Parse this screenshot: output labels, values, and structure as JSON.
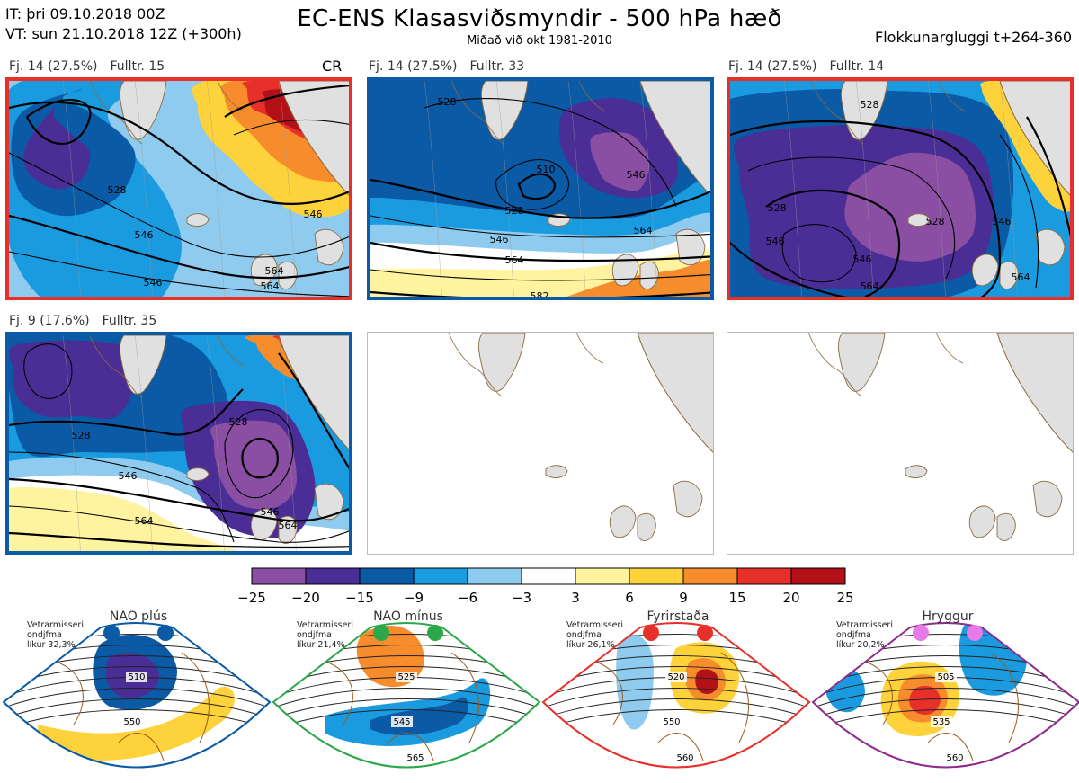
{
  "header": {
    "init_time": "IT: þri 09.10.2018 00Z",
    "valid_time": "VT: sun 21.10.2018 12Z  (+300h)",
    "title": "EC-ENS Klasasviðsmyndir - 500 hPa hæð",
    "subtitle": "Miðað við okt 1981-2010",
    "cluster_window": "Flokkunargluggi t+264-360"
  },
  "panels": [
    {
      "cluster": "Fj. 14 (27.5%)",
      "representative": "Fulltr. 15",
      "extra": "CR",
      "border_color": "#e8302a",
      "empty": false
    },
    {
      "cluster": "Fj. 14 (27.5%)",
      "representative": "Fulltr. 33",
      "extra": "",
      "border_color": "#0b5aa6",
      "empty": false
    },
    {
      "cluster": "Fj. 14 (27.5%)",
      "representative": "Fulltr. 14",
      "extra": "",
      "border_color": "#e8302a",
      "empty": false
    },
    {
      "cluster": "Fj. 9 (17.6%)",
      "representative": "Fulltr. 35",
      "extra": "",
      "border_color": "#0b5aa6",
      "empty": false
    },
    {
      "cluster": "",
      "representative": "",
      "extra": "",
      "border_color": "#bbbbbb",
      "empty": true
    },
    {
      "cluster": "",
      "representative": "",
      "extra": "",
      "border_color": "#bbbbbb",
      "empty": true
    }
  ],
  "chart_data": {
    "type": "heatmap",
    "colorbar": {
      "ticks": [
        "−25",
        "−20",
        "−15",
        "−9",
        "−6",
        "−3",
        "3",
        "6",
        "9",
        "15",
        "20",
        "25"
      ],
      "colors": [
        "#8a4ea3",
        "#4b2d96",
        "#0b5aa6",
        "#1a9be0",
        "#8ecbee",
        "#ffffff",
        "#fff3a0",
        "#fdd23a",
        "#f68c2c",
        "#e8302a",
        "#b11117"
      ]
    },
    "contour_labels": [
      [
        "528",
        "546",
        "564",
        "546",
        "546",
        "564"
      ],
      [
        "528",
        "510",
        "546",
        "528",
        "564",
        "546",
        "564",
        "582"
      ],
      [
        "528",
        "546",
        "528",
        "528",
        "546",
        "546",
        "564",
        "564"
      ],
      [
        "528",
        "528",
        "546",
        "546",
        "564",
        "564"
      ]
    ],
    "regimes": [
      {
        "name": "NAO plús",
        "note": [
          "Vetrarmisseri",
          "ondjfma",
          "líkur 32,3%"
        ],
        "marker_color": "#0b5aa6",
        "outline_color": "#0b5aa6",
        "contour_labels": [
          "510",
          "550"
        ]
      },
      {
        "name": "NAO mínus",
        "note": [
          "Vetrarmisseri",
          "ondjfma",
          "líkur 21,4%"
        ],
        "marker_color": "#2aa84a",
        "outline_color": "#2aa84a",
        "contour_labels": [
          "525",
          "545",
          "565"
        ]
      },
      {
        "name": "Fyrirstaða",
        "note": [
          "Vetrarmisseri",
          "ondjfma",
          "líkur 26,1%"
        ],
        "marker_color": "#e8302a",
        "outline_color": "#e8302a",
        "contour_labels": [
          "520",
          "550",
          "560"
        ]
      },
      {
        "name": "Hryggur",
        "note": [
          "Vetrarmisseri",
          "ondjfma",
          "líkur 20,2%"
        ],
        "marker_color": "#e879e8",
        "outline_color": "#8e2b8e",
        "contour_labels": [
          "505",
          "535",
          "560"
        ]
      }
    ]
  }
}
